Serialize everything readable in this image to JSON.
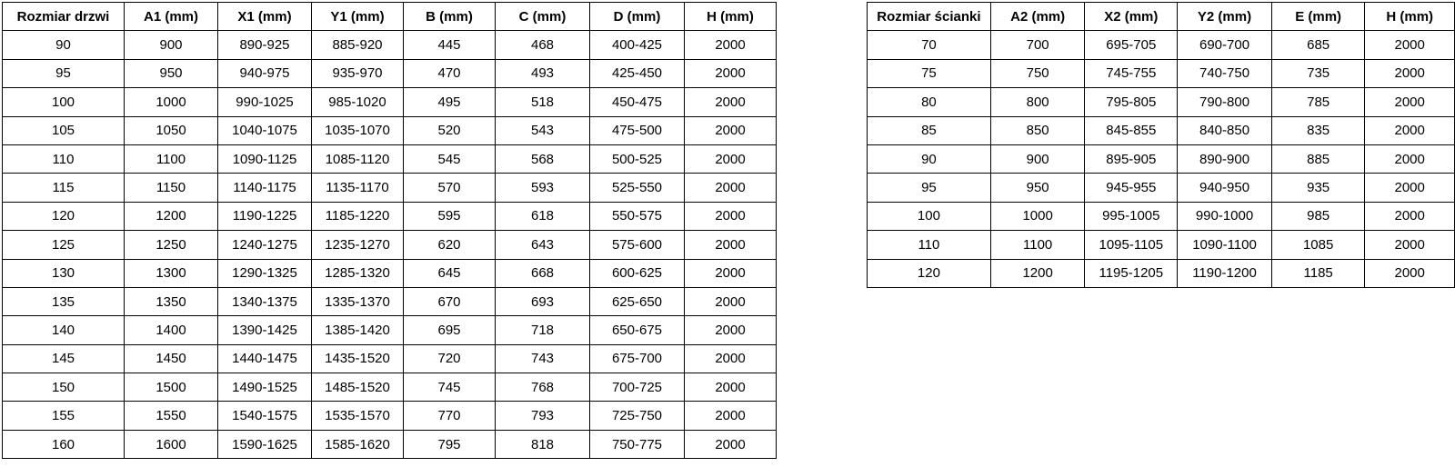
{
  "chart_data": [
    {
      "type": "table",
      "name": "door-size-table",
      "columns": [
        "Rozmiar drzwi",
        "A1 (mm)",
        "X1 (mm)",
        "Y1 (mm)",
        "B (mm)",
        "C (mm)",
        "D (mm)",
        "H (mm)"
      ],
      "rows": [
        [
          "90",
          "900",
          "890-925",
          "885-920",
          "445",
          "468",
          "400-425",
          "2000"
        ],
        [
          "95",
          "950",
          "940-975",
          "935-970",
          "470",
          "493",
          "425-450",
          "2000"
        ],
        [
          "100",
          "1000",
          "990-1025",
          "985-1020",
          "495",
          "518",
          "450-475",
          "2000"
        ],
        [
          "105",
          "1050",
          "1040-1075",
          "1035-1070",
          "520",
          "543",
          "475-500",
          "2000"
        ],
        [
          "110",
          "1100",
          "1090-1125",
          "1085-1120",
          "545",
          "568",
          "500-525",
          "2000"
        ],
        [
          "115",
          "1150",
          "1140-1175",
          "1135-1170",
          "570",
          "593",
          "525-550",
          "2000"
        ],
        [
          "120",
          "1200",
          "1190-1225",
          "1185-1220",
          "595",
          "618",
          "550-575",
          "2000"
        ],
        [
          "125",
          "1250",
          "1240-1275",
          "1235-1270",
          "620",
          "643",
          "575-600",
          "2000"
        ],
        [
          "130",
          "1300",
          "1290-1325",
          "1285-1320",
          "645",
          "668",
          "600-625",
          "2000"
        ],
        [
          "135",
          "1350",
          "1340-1375",
          "1335-1370",
          "670",
          "693",
          "625-650",
          "2000"
        ],
        [
          "140",
          "1400",
          "1390-1425",
          "1385-1420",
          "695",
          "718",
          "650-675",
          "2000"
        ],
        [
          "145",
          "1450",
          "1440-1475",
          "1435-1520",
          "720",
          "743",
          "675-700",
          "2000"
        ],
        [
          "150",
          "1500",
          "1490-1525",
          "1485-1520",
          "745",
          "768",
          "700-725",
          "2000"
        ],
        [
          "155",
          "1550",
          "1540-1575",
          "1535-1570",
          "770",
          "793",
          "725-750",
          "2000"
        ],
        [
          "160",
          "1600",
          "1590-1625",
          "1585-1620",
          "795",
          "818",
          "750-775",
          "2000"
        ]
      ]
    },
    {
      "type": "table",
      "name": "wall-size-table",
      "columns": [
        "Rozmiar ścianki",
        "A2 (mm)",
        "X2 (mm)",
        "Y2 (mm)",
        "E (mm)",
        "H (mm)"
      ],
      "rows": [
        [
          "70",
          "700",
          "695-705",
          "690-700",
          "685",
          "2000"
        ],
        [
          "75",
          "750",
          "745-755",
          "740-750",
          "735",
          "2000"
        ],
        [
          "80",
          "800",
          "795-805",
          "790-800",
          "785",
          "2000"
        ],
        [
          "85",
          "850",
          "845-855",
          "840-850",
          "835",
          "2000"
        ],
        [
          "90",
          "900",
          "895-905",
          "890-900",
          "885",
          "2000"
        ],
        [
          "95",
          "950",
          "945-955",
          "940-950",
          "935",
          "2000"
        ],
        [
          "100",
          "1000",
          "995-1005",
          "990-1000",
          "985",
          "2000"
        ],
        [
          "110",
          "1100",
          "1095-1105",
          "1090-1100",
          "1085",
          "2000"
        ],
        [
          "120",
          "1200",
          "1195-1205",
          "1190-1200",
          "1185",
          "2000"
        ]
      ]
    }
  ],
  "colors": {
    "border": "#000000",
    "text": "#000000",
    "background": "#ffffff"
  }
}
